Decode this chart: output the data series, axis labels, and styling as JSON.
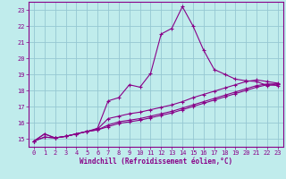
{
  "xlabel": "Windchill (Refroidissement éolien,°C)",
  "background_color": "#c0ecec",
  "grid_color": "#96c8d2",
  "line_color": "#880088",
  "x_values": [
    0,
    1,
    2,
    3,
    4,
    5,
    6,
    7,
    8,
    9,
    10,
    11,
    12,
    13,
    14,
    15,
    16,
    17,
    18,
    19,
    20,
    21,
    22,
    23
  ],
  "line1": [
    14.85,
    15.3,
    15.05,
    15.15,
    15.3,
    15.45,
    15.65,
    17.35,
    17.55,
    18.35,
    18.2,
    19.05,
    21.5,
    21.85,
    23.2,
    22.0,
    20.5,
    19.3,
    19.0,
    18.7,
    18.6,
    18.55,
    18.3,
    18.4
  ],
  "line2": [
    14.85,
    15.3,
    15.05,
    15.15,
    15.3,
    15.45,
    15.6,
    16.25,
    16.4,
    16.55,
    16.65,
    16.8,
    16.95,
    17.1,
    17.3,
    17.55,
    17.75,
    17.95,
    18.15,
    18.35,
    18.55,
    18.65,
    18.55,
    18.45
  ],
  "line3": [
    14.85,
    15.1,
    15.05,
    15.15,
    15.3,
    15.45,
    15.55,
    15.85,
    16.05,
    16.15,
    16.25,
    16.4,
    16.55,
    16.7,
    16.9,
    17.1,
    17.3,
    17.5,
    17.7,
    17.9,
    18.1,
    18.3,
    18.4,
    18.4
  ],
  "line4": [
    14.85,
    15.1,
    15.05,
    15.15,
    15.3,
    15.45,
    15.55,
    15.75,
    15.95,
    16.05,
    16.15,
    16.3,
    16.45,
    16.6,
    16.8,
    17.0,
    17.2,
    17.4,
    17.6,
    17.8,
    18.0,
    18.2,
    18.35,
    18.3
  ],
  "xlim": [
    -0.5,
    23.5
  ],
  "ylim": [
    14.5,
    23.5
  ],
  "yticks": [
    15,
    16,
    17,
    18,
    19,
    20,
    21,
    22,
    23
  ],
  "xticks": [
    0,
    1,
    2,
    3,
    4,
    5,
    6,
    7,
    8,
    9,
    10,
    11,
    12,
    13,
    14,
    15,
    16,
    17,
    18,
    19,
    20,
    21,
    22,
    23
  ],
  "tick_fontsize": 5.0,
  "xlabel_fontsize": 5.5
}
